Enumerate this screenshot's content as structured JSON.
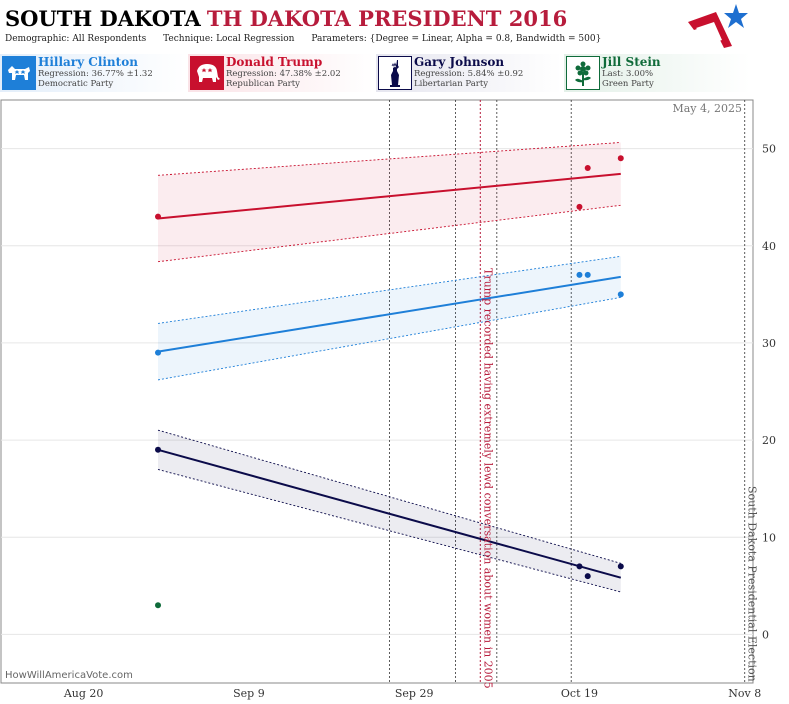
{
  "header": {
    "title_state": "SOUTH DAKOTA",
    "title_rest": "TH DAKOTA PRESIDENT 2016",
    "demographic_label": "Demographic:",
    "demographic_value": "All Respondents",
    "technique_label": "Technique:",
    "technique_value": "Local Regression",
    "parameters_label": "Parameters:",
    "parameters_value": "{Degree = Linear, Alpha = 0.8, Bandwidth = 500}"
  },
  "candidates": [
    {
      "name": "Hillary Clinton",
      "stat": "Regression: 36.77% ±1.32",
      "party": "Democratic Party",
      "color": "#1e7fd8",
      "bg": "#e3eefa",
      "icon": "donkey-icon"
    },
    {
      "name": "Donald Trump",
      "stat": "Regression: 47.38% ±2.02",
      "party": "Republican Party",
      "color": "#c8102e",
      "bg": "#fae3e7",
      "icon": "elephant-icon"
    },
    {
      "name": "Gary Johnson",
      "stat": "Regression: 5.84% ±0.92",
      "party": "Libertarian Party",
      "color": "#0b0b4a",
      "bg": "#e6e6ef",
      "icon": "statue-of-liberty-icon"
    },
    {
      "name": "Jill Stein",
      "stat": "Last: 3.00%",
      "party": "Green Party",
      "color": "#0f6b3a",
      "bg": "#e3f0e8",
      "icon": "flower-icon"
    }
  ],
  "chart_data": {
    "type": "scatter",
    "date_label": "May 4, 2025",
    "watermark": "HowWillAmericaVote.com",
    "x_ticks": [
      "Aug 20",
      "Sep 9",
      "Sep 29",
      "Oct 19",
      "Nov 8"
    ],
    "y_ticks": [
      0,
      10,
      20,
      30,
      40,
      50
    ],
    "ylim": [
      -5,
      55
    ],
    "xlim": [
      "2016-08-10",
      "2016-11-09"
    ],
    "grid": true,
    "series": [
      {
        "name": "Hillary Clinton",
        "color": "#1e7fd8",
        "points": [
          [
            "2016-08-29",
            29
          ],
          [
            "2016-10-19",
            37
          ],
          [
            "2016-10-20",
            37
          ],
          [
            "2016-10-24",
            35
          ]
        ],
        "regression": [
          [
            "2016-08-29",
            29.1
          ],
          [
            "2016-10-24",
            36.8
          ]
        ],
        "band": 1.32
      },
      {
        "name": "Donald Trump",
        "color": "#c8102e",
        "points": [
          [
            "2016-08-29",
            43
          ],
          [
            "2016-10-19",
            44
          ],
          [
            "2016-10-20",
            48
          ],
          [
            "2016-10-24",
            49
          ]
        ],
        "regression": [
          [
            "2016-08-29",
            42.8
          ],
          [
            "2016-10-24",
            47.4
          ]
        ],
        "band": 2.02
      },
      {
        "name": "Gary Johnson",
        "color": "#0b0b4a",
        "points": [
          [
            "2016-08-29",
            19
          ],
          [
            "2016-10-19",
            7
          ],
          [
            "2016-10-20",
            6
          ],
          [
            "2016-10-24",
            7
          ]
        ],
        "regression": [
          [
            "2016-08-29",
            19.0
          ],
          [
            "2016-10-24",
            5.84
          ]
        ],
        "band": 0.92
      },
      {
        "name": "Jill Stein",
        "color": "#0f6b3a",
        "points": [
          [
            "2016-08-29",
            3
          ]
        ]
      }
    ],
    "event_lines": [
      "2016-09-26",
      "2016-10-04",
      "2016-10-09",
      "2016-10-18"
    ],
    "trump_event": {
      "date": "2016-10-07",
      "label": "Trump recorded having extremely lewd conversation about women in 2005",
      "color": "#b71c3c"
    },
    "election": {
      "date": "2016-11-08",
      "label": "South Dakota Presidential Election"
    }
  }
}
